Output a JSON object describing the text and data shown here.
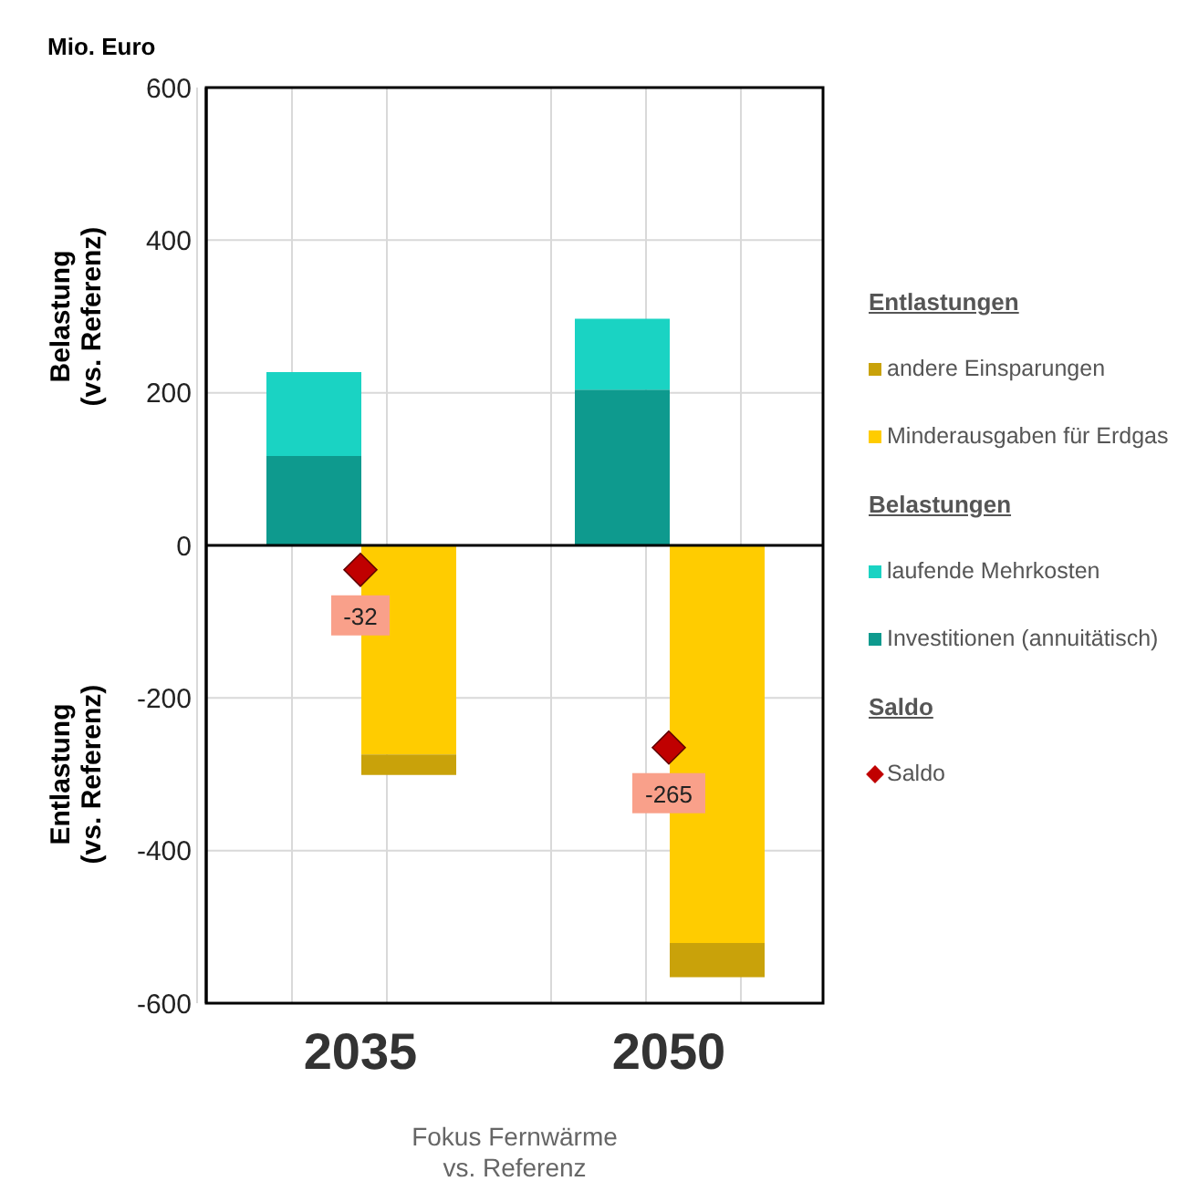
{
  "chart_data": {
    "type": "bar",
    "title": "Mio. Euro",
    "ylabel": "Belastung (vs. Referenz)",
    "xlabel": "Fokus Fernwärme vs. Referenz",
    "annotations": [
      "Entlastungen",
      "Belastungen",
      "Saldo",
      "Entlastung (vs. Referenz)"
    ],
    "categories": [
      "2035",
      "2050"
    ],
    "stacked": true,
    "series": [
      {
        "name": "Investitionen (annuitätisch)",
        "color": "#0e9a8e",
        "values": [
          117,
          204
        ]
      },
      {
        "name": "laufende Mehrkosten",
        "color": "#1ad3c3",
        "values": [
          110,
          93
        ]
      },
      {
        "name": "Minderausgaben für Erdgas",
        "color": "#ffcc00",
        "values": [
          -274,
          -521
        ]
      },
      {
        "name": "andere Einsparungen",
        "color": "#c9a20a",
        "values": [
          -27,
          -45
        ]
      },
      {
        "name": "Saldo",
        "type": "scatter",
        "color": "#c00000",
        "marker": "diamond",
        "values": [
          -32,
          -265
        ],
        "data_labels": true
      }
    ],
    "ylim": [
      -600,
      600
    ],
    "yticks": [
      -600,
      -400,
      -200,
      0,
      200,
      400,
      600
    ],
    "ref_lines": [
      {
        "axis": "y",
        "value": 0,
        "color": "#000000"
      }
    ],
    "grid": true,
    "legend": "right"
  }
}
